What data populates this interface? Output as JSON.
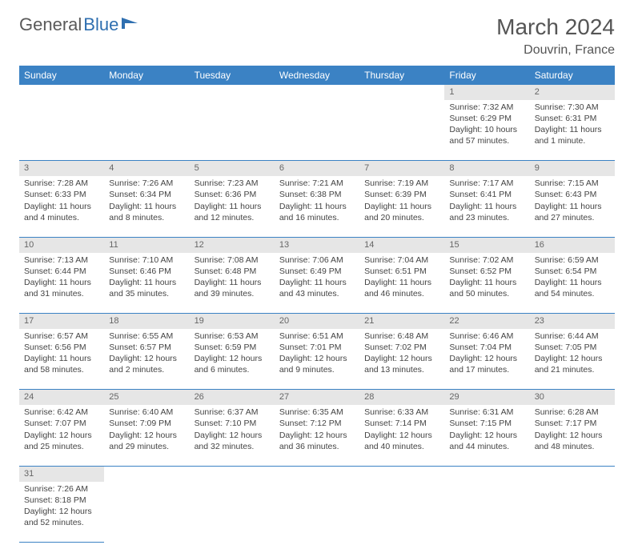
{
  "brand": {
    "part1": "General",
    "part2": "Blue"
  },
  "title": "March 2024",
  "location": "Douvrin, France",
  "colors": {
    "header_bg": "#3b82c4",
    "header_text": "#ffffff",
    "daynum_bg": "#e6e6e6",
    "daynum_text": "#666666",
    "border": "#3b82c4",
    "body_text": "#444444",
    "brand_gray": "#5a5a5a",
    "brand_blue": "#2f6fb0"
  },
  "weekdays": [
    "Sunday",
    "Monday",
    "Tuesday",
    "Wednesday",
    "Thursday",
    "Friday",
    "Saturday"
  ],
  "weeks": [
    [
      {
        "n": "",
        "sunrise": "",
        "sunset": "",
        "daylight": ""
      },
      {
        "n": "",
        "sunrise": "",
        "sunset": "",
        "daylight": ""
      },
      {
        "n": "",
        "sunrise": "",
        "sunset": "",
        "daylight": ""
      },
      {
        "n": "",
        "sunrise": "",
        "sunset": "",
        "daylight": ""
      },
      {
        "n": "",
        "sunrise": "",
        "sunset": "",
        "daylight": ""
      },
      {
        "n": "1",
        "sunrise": "Sunrise: 7:32 AM",
        "sunset": "Sunset: 6:29 PM",
        "daylight": "Daylight: 10 hours and 57 minutes."
      },
      {
        "n": "2",
        "sunrise": "Sunrise: 7:30 AM",
        "sunset": "Sunset: 6:31 PM",
        "daylight": "Daylight: 11 hours and 1 minute."
      }
    ],
    [
      {
        "n": "3",
        "sunrise": "Sunrise: 7:28 AM",
        "sunset": "Sunset: 6:33 PM",
        "daylight": "Daylight: 11 hours and 4 minutes."
      },
      {
        "n": "4",
        "sunrise": "Sunrise: 7:26 AM",
        "sunset": "Sunset: 6:34 PM",
        "daylight": "Daylight: 11 hours and 8 minutes."
      },
      {
        "n": "5",
        "sunrise": "Sunrise: 7:23 AM",
        "sunset": "Sunset: 6:36 PM",
        "daylight": "Daylight: 11 hours and 12 minutes."
      },
      {
        "n": "6",
        "sunrise": "Sunrise: 7:21 AM",
        "sunset": "Sunset: 6:38 PM",
        "daylight": "Daylight: 11 hours and 16 minutes."
      },
      {
        "n": "7",
        "sunrise": "Sunrise: 7:19 AM",
        "sunset": "Sunset: 6:39 PM",
        "daylight": "Daylight: 11 hours and 20 minutes."
      },
      {
        "n": "8",
        "sunrise": "Sunrise: 7:17 AM",
        "sunset": "Sunset: 6:41 PM",
        "daylight": "Daylight: 11 hours and 23 minutes."
      },
      {
        "n": "9",
        "sunrise": "Sunrise: 7:15 AM",
        "sunset": "Sunset: 6:43 PM",
        "daylight": "Daylight: 11 hours and 27 minutes."
      }
    ],
    [
      {
        "n": "10",
        "sunrise": "Sunrise: 7:13 AM",
        "sunset": "Sunset: 6:44 PM",
        "daylight": "Daylight: 11 hours and 31 minutes."
      },
      {
        "n": "11",
        "sunrise": "Sunrise: 7:10 AM",
        "sunset": "Sunset: 6:46 PM",
        "daylight": "Daylight: 11 hours and 35 minutes."
      },
      {
        "n": "12",
        "sunrise": "Sunrise: 7:08 AM",
        "sunset": "Sunset: 6:48 PM",
        "daylight": "Daylight: 11 hours and 39 minutes."
      },
      {
        "n": "13",
        "sunrise": "Sunrise: 7:06 AM",
        "sunset": "Sunset: 6:49 PM",
        "daylight": "Daylight: 11 hours and 43 minutes."
      },
      {
        "n": "14",
        "sunrise": "Sunrise: 7:04 AM",
        "sunset": "Sunset: 6:51 PM",
        "daylight": "Daylight: 11 hours and 46 minutes."
      },
      {
        "n": "15",
        "sunrise": "Sunrise: 7:02 AM",
        "sunset": "Sunset: 6:52 PM",
        "daylight": "Daylight: 11 hours and 50 minutes."
      },
      {
        "n": "16",
        "sunrise": "Sunrise: 6:59 AM",
        "sunset": "Sunset: 6:54 PM",
        "daylight": "Daylight: 11 hours and 54 minutes."
      }
    ],
    [
      {
        "n": "17",
        "sunrise": "Sunrise: 6:57 AM",
        "sunset": "Sunset: 6:56 PM",
        "daylight": "Daylight: 11 hours and 58 minutes."
      },
      {
        "n": "18",
        "sunrise": "Sunrise: 6:55 AM",
        "sunset": "Sunset: 6:57 PM",
        "daylight": "Daylight: 12 hours and 2 minutes."
      },
      {
        "n": "19",
        "sunrise": "Sunrise: 6:53 AM",
        "sunset": "Sunset: 6:59 PM",
        "daylight": "Daylight: 12 hours and 6 minutes."
      },
      {
        "n": "20",
        "sunrise": "Sunrise: 6:51 AM",
        "sunset": "Sunset: 7:01 PM",
        "daylight": "Daylight: 12 hours and 9 minutes."
      },
      {
        "n": "21",
        "sunrise": "Sunrise: 6:48 AM",
        "sunset": "Sunset: 7:02 PM",
        "daylight": "Daylight: 12 hours and 13 minutes."
      },
      {
        "n": "22",
        "sunrise": "Sunrise: 6:46 AM",
        "sunset": "Sunset: 7:04 PM",
        "daylight": "Daylight: 12 hours and 17 minutes."
      },
      {
        "n": "23",
        "sunrise": "Sunrise: 6:44 AM",
        "sunset": "Sunset: 7:05 PM",
        "daylight": "Daylight: 12 hours and 21 minutes."
      }
    ],
    [
      {
        "n": "24",
        "sunrise": "Sunrise: 6:42 AM",
        "sunset": "Sunset: 7:07 PM",
        "daylight": "Daylight: 12 hours and 25 minutes."
      },
      {
        "n": "25",
        "sunrise": "Sunrise: 6:40 AM",
        "sunset": "Sunset: 7:09 PM",
        "daylight": "Daylight: 12 hours and 29 minutes."
      },
      {
        "n": "26",
        "sunrise": "Sunrise: 6:37 AM",
        "sunset": "Sunset: 7:10 PM",
        "daylight": "Daylight: 12 hours and 32 minutes."
      },
      {
        "n": "27",
        "sunrise": "Sunrise: 6:35 AM",
        "sunset": "Sunset: 7:12 PM",
        "daylight": "Daylight: 12 hours and 36 minutes."
      },
      {
        "n": "28",
        "sunrise": "Sunrise: 6:33 AM",
        "sunset": "Sunset: 7:14 PM",
        "daylight": "Daylight: 12 hours and 40 minutes."
      },
      {
        "n": "29",
        "sunrise": "Sunrise: 6:31 AM",
        "sunset": "Sunset: 7:15 PM",
        "daylight": "Daylight: 12 hours and 44 minutes."
      },
      {
        "n": "30",
        "sunrise": "Sunrise: 6:28 AM",
        "sunset": "Sunset: 7:17 PM",
        "daylight": "Daylight: 12 hours and 48 minutes."
      }
    ],
    [
      {
        "n": "31",
        "sunrise": "Sunrise: 7:26 AM",
        "sunset": "Sunset: 8:18 PM",
        "daylight": "Daylight: 12 hours and 52 minutes."
      },
      {
        "n": "",
        "sunrise": "",
        "sunset": "",
        "daylight": ""
      },
      {
        "n": "",
        "sunrise": "",
        "sunset": "",
        "daylight": ""
      },
      {
        "n": "",
        "sunrise": "",
        "sunset": "",
        "daylight": ""
      },
      {
        "n": "",
        "sunrise": "",
        "sunset": "",
        "daylight": ""
      },
      {
        "n": "",
        "sunrise": "",
        "sunset": "",
        "daylight": ""
      },
      {
        "n": "",
        "sunrise": "",
        "sunset": "",
        "daylight": ""
      }
    ]
  ]
}
